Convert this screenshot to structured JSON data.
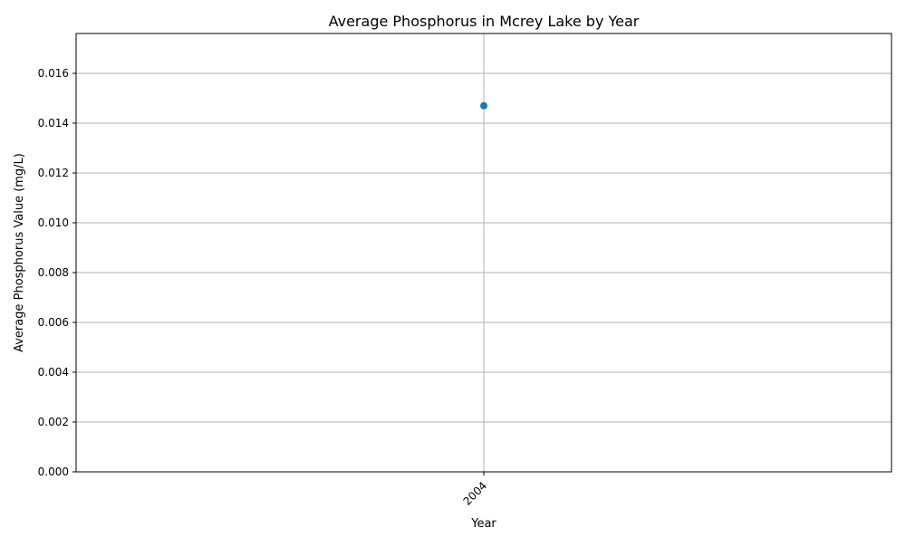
{
  "chart_data": {
    "type": "line",
    "title": "Average Phosphorus in Mcrey Lake by Year",
    "xlabel": "Year",
    "ylabel": "Average Phosphorus Value (mg/L)",
    "categories": [
      "2004"
    ],
    "series": [
      {
        "values": [
          0.0147
        ],
        "color": "#1f77b4",
        "marker": "circle"
      }
    ],
    "ylim": [
      0,
      0.0176
    ],
    "yticks": [
      "0.000",
      "0.002",
      "0.004",
      "0.006",
      "0.008",
      "0.010",
      "0.012",
      "0.014",
      "0.016"
    ],
    "ytick_values": [
      0,
      0.002,
      0.004,
      0.006,
      0.008,
      0.01,
      0.012,
      0.014,
      0.016
    ],
    "grid": true,
    "colors": {
      "grid": "#b0b0b0",
      "axis": "#000000"
    }
  }
}
